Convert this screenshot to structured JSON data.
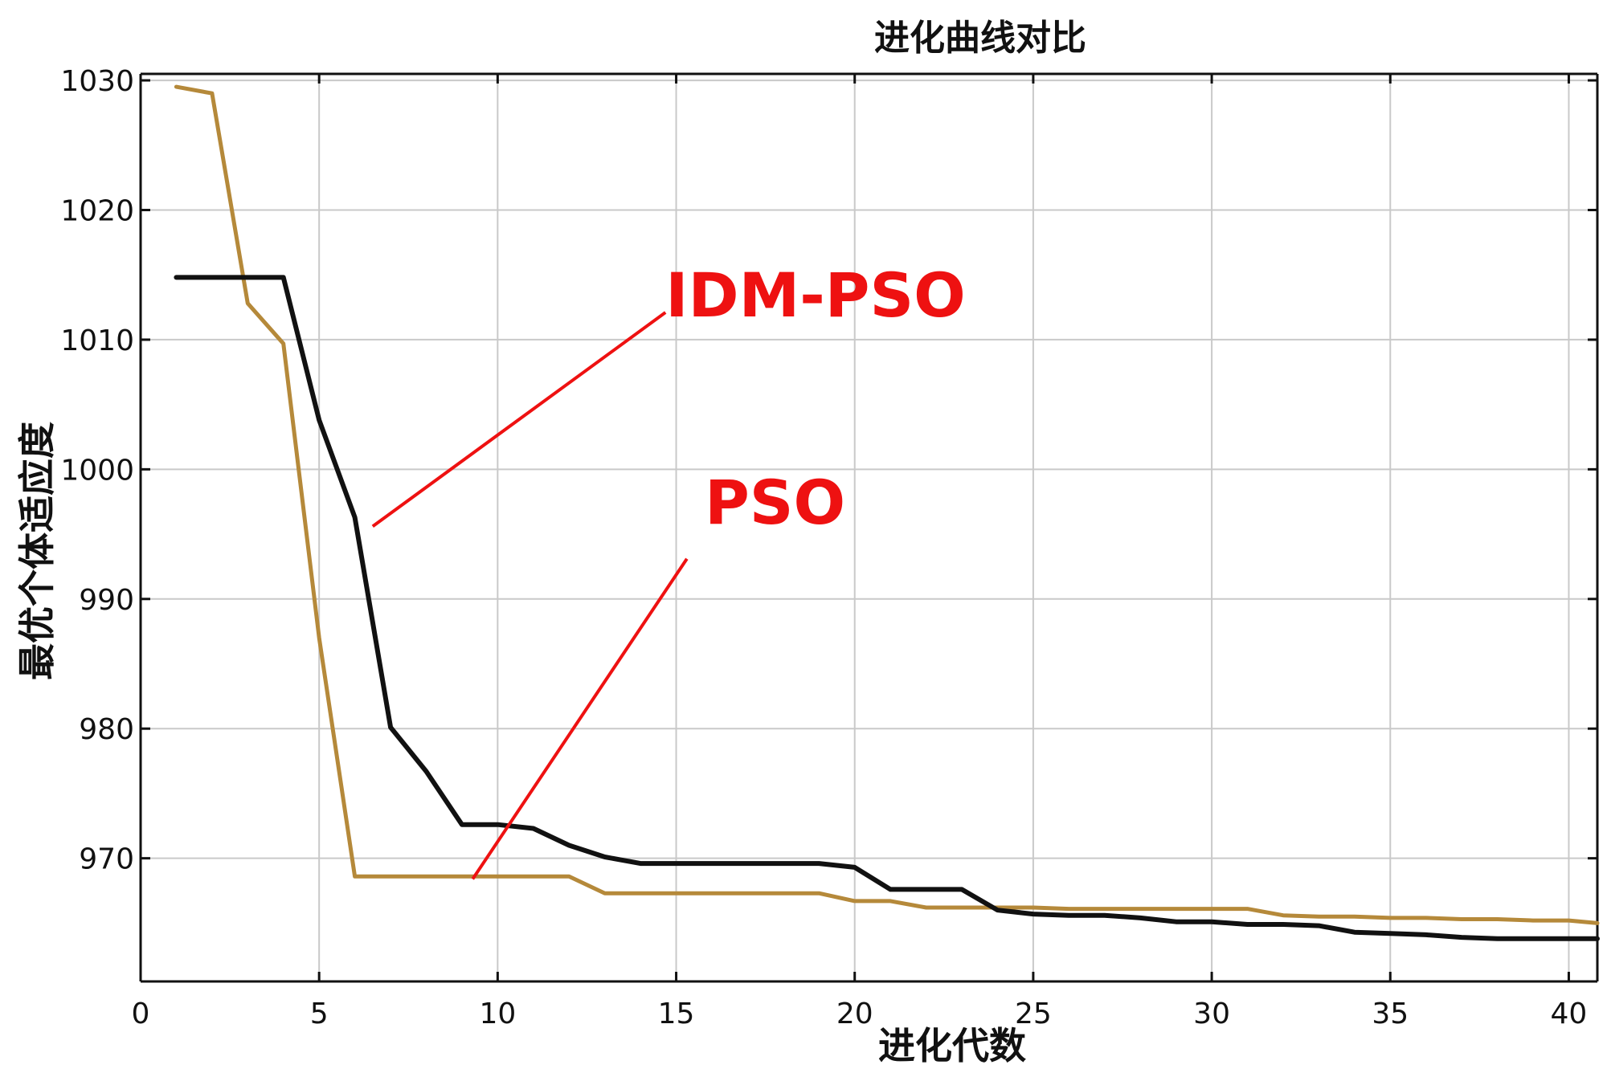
{
  "chart_data": {
    "type": "line",
    "title": "进化曲线对比",
    "xlabel": "进化代数",
    "ylabel": "最优个体适应度",
    "xlim": [
      0,
      40.8
    ],
    "ylim": [
      960.5,
      1030.5
    ],
    "xticks": [
      0,
      5,
      10,
      15,
      20,
      25,
      30,
      35,
      40
    ],
    "yticks": [
      970,
      980,
      990,
      1000,
      1010,
      1020,
      1030
    ],
    "grid": true,
    "legend": "none",
    "series": [
      {
        "name": "PSO",
        "color": "#b5893a",
        "x": [
          1,
          2,
          3,
          4,
          5,
          6,
          7,
          8,
          9,
          10,
          11,
          12,
          13,
          14,
          15,
          16,
          17,
          18,
          19,
          20,
          21,
          22,
          23,
          24,
          25,
          26,
          27,
          28,
          29,
          30,
          31,
          32,
          33,
          34,
          35,
          36,
          37,
          38,
          39,
          40,
          40.8
        ],
        "y": [
          1029.5,
          1029.0,
          1012.8,
          1009.7,
          987.0,
          968.6,
          968.6,
          968.6,
          968.6,
          968.6,
          968.6,
          968.6,
          967.3,
          967.3,
          967.3,
          967.3,
          967.3,
          967.3,
          967.3,
          966.7,
          966.7,
          966.2,
          966.2,
          966.2,
          966.2,
          966.1,
          966.1,
          966.1,
          966.1,
          966.1,
          966.1,
          965.6,
          965.5,
          965.5,
          965.4,
          965.4,
          965.3,
          965.3,
          965.2,
          965.2,
          965.0
        ]
      },
      {
        "name": "IDM-PSO",
        "color": "#111111",
        "x": [
          1,
          2,
          3,
          4,
          5,
          6,
          7,
          8,
          9,
          10,
          11,
          12,
          13,
          14,
          15,
          16,
          17,
          18,
          19,
          20,
          21,
          22,
          23,
          24,
          25,
          26,
          27,
          28,
          29,
          30,
          31,
          32,
          33,
          34,
          35,
          36,
          37,
          38,
          39,
          40,
          40.8
        ],
        "y": [
          1014.8,
          1014.8,
          1014.8,
          1014.8,
          1003.8,
          996.3,
          980.1,
          976.7,
          972.6,
          972.6,
          972.3,
          971.0,
          970.1,
          969.6,
          969.6,
          969.6,
          969.6,
          969.6,
          969.6,
          969.3,
          967.6,
          967.6,
          967.6,
          966.0,
          965.7,
          965.6,
          965.6,
          965.4,
          965.1,
          965.1,
          964.9,
          964.9,
          964.8,
          964.3,
          964.2,
          964.1,
          963.9,
          963.8,
          963.8,
          963.8,
          963.8
        ]
      }
    ],
    "annotations": [
      {
        "text": "IDM-PSO",
        "text_at": [
          14.7,
          1011.8
        ],
        "line_from": [
          14.7,
          1012.1
        ],
        "line_to": [
          6.5,
          995.6
        ]
      },
      {
        "text": "PSO",
        "text_at": [
          15.8,
          995.8
        ],
        "line_from": [
          15.3,
          993.1
        ],
        "line_to": [
          9.3,
          968.4
        ]
      }
    ]
  }
}
